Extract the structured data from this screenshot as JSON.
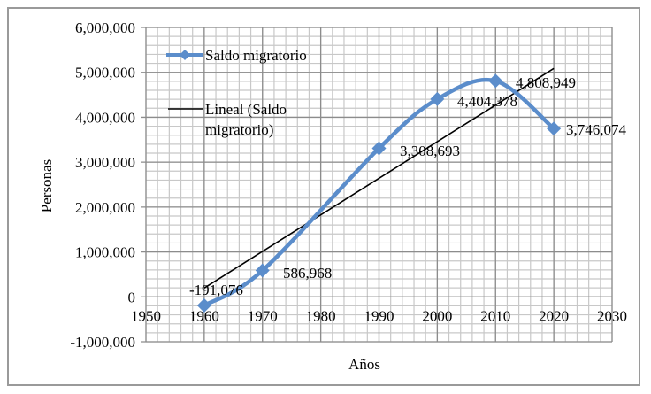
{
  "chart_data": {
    "type": "scatter",
    "title": "",
    "xlabel": "Años",
    "ylabel": "Personas",
    "xlim": [
      1950,
      2030
    ],
    "ylim": [
      -1000000,
      6000000
    ],
    "x_ticks": [
      "1950",
      "1960",
      "1970",
      "1980",
      "1990",
      "2000",
      "2010",
      "2020",
      "2030"
    ],
    "y_ticks": [
      "6,000,000",
      "5,000,000",
      "4,000,000",
      "3,000,000",
      "2,000,000",
      "1,000,000",
      "0",
      "-1,000,000"
    ],
    "grid": {
      "major": true,
      "minor": true,
      "x_minor_step": 2,
      "y_minor_step": 200000
    },
    "legend_position": "upper-left-inside",
    "series": [
      {
        "name": "Saldo migratorio",
        "style": "smoothed line with diamond markers",
        "color": "#5b8dcb",
        "x": [
          1960,
          1970,
          1990,
          2000,
          2010,
          2020
        ],
        "values": [
          -191076,
          586968,
          3308693,
          4404378,
          4808949,
          3746074
        ],
        "labels": [
          "-191,076",
          "586,968",
          "3,308,693",
          "4,404,378",
          "4,808,949",
          "3,746,074"
        ]
      },
      {
        "name": "Lineal (Saldo migratorio)",
        "style": "linear trendline",
        "color": "#000000",
        "x": [
          1960,
          2020
        ],
        "values": [
          196000,
          5086000
        ]
      }
    ]
  },
  "legend": {
    "item1": "Saldo migratorio",
    "item2_line1": "Lineal (Saldo",
    "item2_line2": "migratorio)"
  },
  "axes": {
    "xlabel": "Años",
    "ylabel": "Personas"
  }
}
